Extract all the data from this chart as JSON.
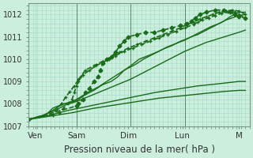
{
  "background_color": "#cceedd",
  "plot_bg_color": "#cceedd",
  "grid_color": "#aaddcc",
  "line_color": "#1a6b1a",
  "ylim": [
    1007,
    1012.5
  ],
  "xlim": [
    0,
    5.1
  ],
  "yticks": [
    1007,
    1008,
    1009,
    1010,
    1011,
    1012
  ],
  "xtick_labels": [
    "Ven",
    "Sam",
    "Dim",
    "Lun",
    "M"
  ],
  "xtick_positions": [
    0.15,
    1.1,
    2.3,
    3.55,
    4.85
  ],
  "xlabel": "Pression niveau de la mer( hPa )",
  "xlabel_fontsize": 8.5,
  "ytick_fontsize": 7,
  "xtick_fontsize": 7.5,
  "series": [
    {
      "x": [
        0.0,
        0.4,
        0.55,
        0.8,
        1.05,
        1.15,
        1.3,
        1.5,
        1.7,
        1.9,
        2.05,
        2.2,
        2.35,
        2.55,
        2.75,
        3.0,
        3.2,
        3.4,
        3.6,
        3.75,
        3.9,
        4.1,
        4.3,
        4.5,
        4.65,
        4.75,
        4.85,
        5.0
      ],
      "y": [
        1007.3,
        1007.5,
        1007.8,
        1008.0,
        1008.1,
        1008.2,
        1008.4,
        1008.6,
        1008.85,
        1009.0,
        1009.2,
        1009.5,
        1009.7,
        1010.0,
        1010.15,
        1010.35,
        1010.55,
        1010.7,
        1010.85,
        1011.0,
        1011.1,
        1011.3,
        1011.5,
        1011.7,
        1011.9,
        1012.0,
        1012.1,
        1012.1
      ],
      "style": "-",
      "marker": null,
      "lw": 1.0
    },
    {
      "x": [
        0.0,
        0.3,
        0.55,
        0.75,
        1.0,
        1.15,
        1.35,
        1.6,
        1.8,
        2.0,
        2.2,
        2.45,
        2.65,
        2.9,
        3.1,
        3.3,
        3.5,
        3.7,
        3.85,
        4.0,
        4.2,
        4.4,
        4.55,
        4.7,
        4.85,
        5.0
      ],
      "y": [
        1007.3,
        1007.45,
        1007.7,
        1007.95,
        1008.1,
        1008.25,
        1008.5,
        1008.75,
        1009.0,
        1009.25,
        1009.5,
        1009.75,
        1010.0,
        1010.25,
        1010.45,
        1010.6,
        1010.8,
        1010.95,
        1011.1,
        1011.25,
        1011.45,
        1011.6,
        1011.75,
        1011.85,
        1011.95,
        1012.0
      ],
      "style": "-",
      "marker": null,
      "lw": 1.0
    },
    {
      "x": [
        0.0,
        0.35,
        0.6,
        0.85,
        1.1,
        1.35,
        1.6,
        1.85,
        2.1,
        2.35,
        2.6,
        2.85,
        3.1,
        3.35,
        3.6,
        3.85,
        4.1,
        4.35,
        4.6,
        4.85,
        5.0
      ],
      "y": [
        1007.3,
        1007.5,
        1007.7,
        1007.95,
        1008.1,
        1008.3,
        1008.5,
        1008.7,
        1008.9,
        1009.1,
        1009.35,
        1009.6,
        1009.85,
        1010.1,
        1010.35,
        1010.55,
        1010.75,
        1010.9,
        1011.05,
        1011.2,
        1011.3
      ],
      "style": "-",
      "marker": null,
      "lw": 1.0
    },
    {
      "x": [
        0.0,
        0.5,
        0.9,
        1.4,
        1.9,
        2.4,
        2.9,
        3.4,
        3.9,
        4.4,
        4.85,
        5.0
      ],
      "y": [
        1007.3,
        1007.5,
        1007.7,
        1007.9,
        1008.1,
        1008.3,
        1008.5,
        1008.65,
        1008.8,
        1008.9,
        1009.0,
        1009.0
      ],
      "style": "-",
      "marker": null,
      "lw": 1.0
    },
    {
      "x": [
        0.0,
        0.5,
        1.0,
        1.5,
        2.0,
        2.5,
        3.0,
        3.5,
        4.0,
        4.5,
        4.85,
        5.0
      ],
      "y": [
        1007.3,
        1007.45,
        1007.6,
        1007.8,
        1007.95,
        1008.1,
        1008.25,
        1008.35,
        1008.45,
        1008.55,
        1008.6,
        1008.6
      ],
      "style": "-",
      "marker": null,
      "lw": 1.0
    },
    {
      "x": [
        0.0,
        1.1,
        1.15,
        1.25,
        1.3,
        1.4,
        1.5,
        1.6,
        1.65,
        1.7,
        1.8,
        1.9,
        2.0,
        2.1,
        2.2,
        2.3,
        2.5,
        2.7,
        2.9,
        3.1,
        3.3,
        3.5,
        3.65,
        3.75,
        3.85,
        3.95,
        4.1,
        4.3,
        4.5,
        4.65,
        4.75,
        4.85,
        5.0
      ],
      "y": [
        1007.3,
        1007.9,
        1008.0,
        1008.2,
        1008.5,
        1008.7,
        1009.0,
        1009.2,
        1009.5,
        1009.8,
        1010.0,
        1010.1,
        1010.3,
        1010.6,
        1010.8,
        1011.0,
        1011.1,
        1011.2,
        1011.2,
        1011.3,
        1011.4,
        1011.5,
        1011.6,
        1011.7,
        1011.85,
        1012.0,
        1012.1,
        1012.2,
        1012.2,
        1012.1,
        1012.0,
        1011.9,
        1011.85
      ],
      "style": "--",
      "marker": "D",
      "lw": 1.2,
      "ms": 2.5
    },
    {
      "x": [
        0.0,
        0.7,
        0.8,
        0.9,
        1.0,
        1.05,
        1.1,
        1.15,
        1.2,
        1.3,
        1.5,
        1.7,
        1.9,
        2.1,
        2.3,
        2.5,
        2.7,
        2.9,
        3.1,
        3.3,
        3.5,
        3.65,
        3.8,
        3.95,
        4.1,
        4.25,
        4.4,
        4.55,
        4.7,
        4.85,
        5.0
      ],
      "y": [
        1007.3,
        1007.6,
        1007.8,
        1008.0,
        1008.2,
        1008.5,
        1008.8,
        1009.0,
        1009.2,
        1009.5,
        1009.7,
        1009.9,
        1010.1,
        1010.3,
        1010.5,
        1010.65,
        1010.8,
        1010.95,
        1011.1,
        1011.25,
        1011.4,
        1011.55,
        1011.65,
        1011.8,
        1011.9,
        1012.0,
        1012.1,
        1012.15,
        1012.2,
        1012.15,
        1012.0
      ],
      "style": "--",
      "marker": "+",
      "lw": 1.2,
      "ms": 3.5
    },
    {
      "x": [
        0.0,
        0.55,
        0.65,
        0.75,
        0.85,
        0.95,
        1.05,
        1.15,
        1.25,
        1.4,
        1.55,
        1.7,
        1.85,
        2.0,
        2.2,
        2.4,
        2.6,
        2.8,
        3.0,
        3.2,
        3.4,
        3.6,
        3.8,
        3.9,
        4.0,
        4.15,
        4.3,
        4.45,
        4.6,
        4.75,
        4.85,
        5.0
      ],
      "y": [
        1007.3,
        1007.5,
        1007.75,
        1008.0,
        1008.3,
        1008.55,
        1008.8,
        1009.1,
        1009.3,
        1009.5,
        1009.7,
        1009.85,
        1010.0,
        1010.15,
        1010.35,
        1010.5,
        1010.65,
        1010.8,
        1010.95,
        1011.1,
        1011.25,
        1011.4,
        1011.55,
        1011.65,
        1011.75,
        1011.85,
        1011.95,
        1012.05,
        1012.1,
        1012.1,
        1012.0,
        1011.85
      ],
      "style": "--",
      "marker": "+",
      "lw": 1.2,
      "ms": 3.5
    }
  ],
  "vlines": [
    1.1,
    2.35,
    3.6
  ],
  "vline_color": "#558866",
  "vline_lw": 0.7
}
